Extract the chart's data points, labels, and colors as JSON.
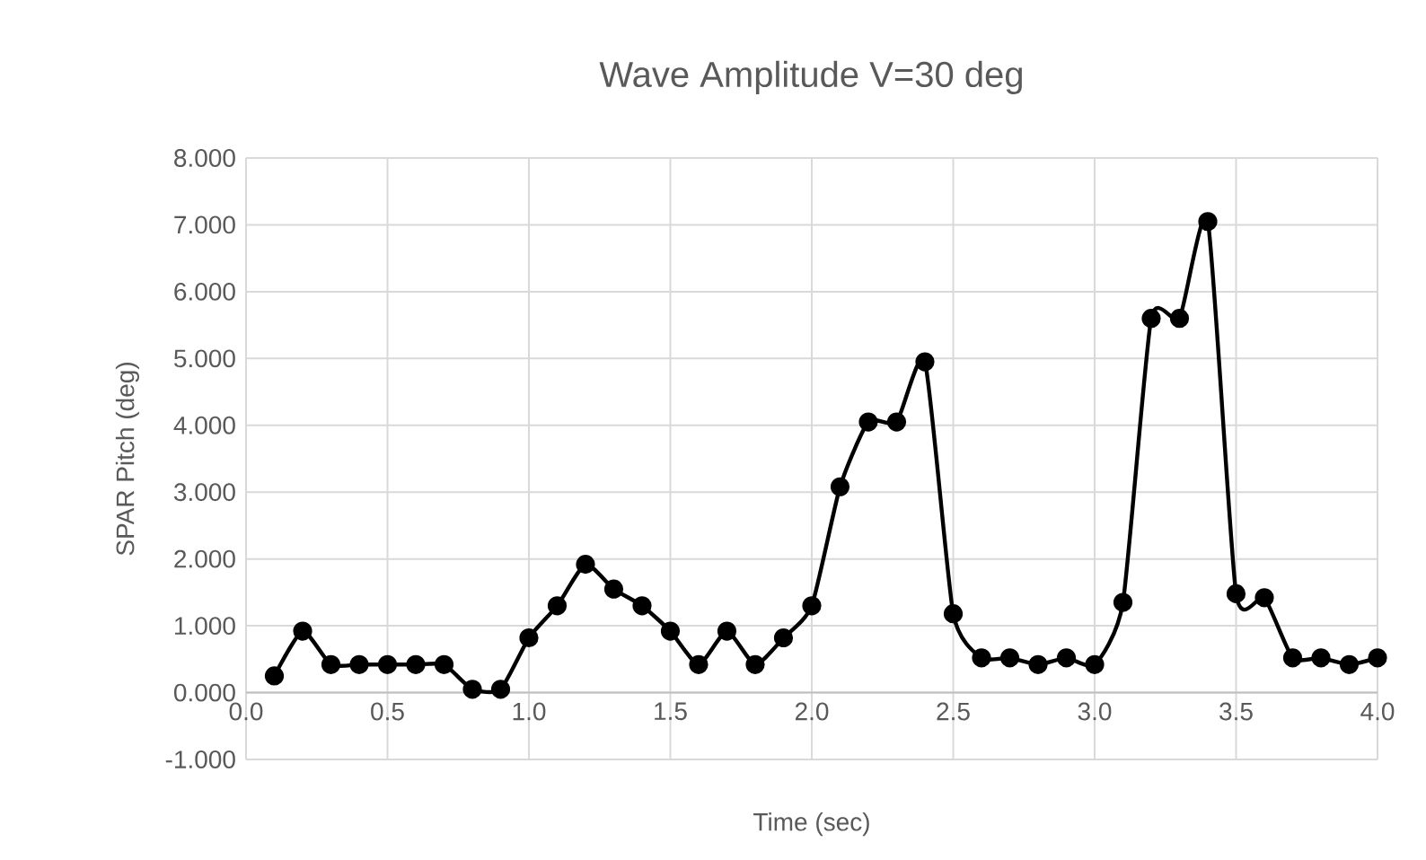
{
  "chart_data": {
    "type": "line",
    "title": "Wave Amplitude V=30 deg",
    "xlabel": "Time (sec)",
    "ylabel": "SPAR Pitch (deg)",
    "x": [
      0.1,
      0.2,
      0.3,
      0.4,
      0.5,
      0.6,
      0.7,
      0.8,
      0.9,
      1.0,
      1.1,
      1.2,
      1.3,
      1.4,
      1.5,
      1.6,
      1.7,
      1.8,
      1.9,
      2.0,
      2.1,
      2.2,
      2.3,
      2.4,
      2.5,
      2.6,
      2.7,
      2.8,
      2.9,
      3.0,
      3.1,
      3.2,
      3.3,
      3.4,
      3.5,
      3.6,
      3.7,
      3.8,
      3.9,
      4.0
    ],
    "series": [
      {
        "color": "#000000",
        "values": [
          0.25,
          0.92,
          0.42,
          0.42,
          0.42,
          0.42,
          0.42,
          0.05,
          0.05,
          0.82,
          1.3,
          1.92,
          1.55,
          1.3,
          0.92,
          0.42,
          0.92,
          0.42,
          0.82,
          1.3,
          3.08,
          4.05,
          4.05,
          4.95,
          1.18,
          0.52,
          0.52,
          0.42,
          0.52,
          0.42,
          1.35,
          5.6,
          5.6,
          7.05,
          1.48,
          1.42,
          0.52,
          0.52,
          0.42,
          0.52
        ]
      }
    ],
    "xlim": [
      0,
      4
    ],
    "ylim": [
      -1,
      8
    ],
    "xticks": [
      {
        "value": 0,
        "label": "0.0"
      },
      {
        "value": 0.5,
        "label": "0.5"
      },
      {
        "value": 1,
        "label": "1.0"
      },
      {
        "value": 1.5,
        "label": "1.5"
      },
      {
        "value": 2,
        "label": "2.0"
      },
      {
        "value": 2.5,
        "label": "2.5"
      },
      {
        "value": 3,
        "label": "3.0"
      },
      {
        "value": 3.5,
        "label": "3.5"
      },
      {
        "value": 4,
        "label": "4.0"
      }
    ],
    "yticks": [
      {
        "value": -1,
        "label": "-1.000"
      },
      {
        "value": 0,
        "label": "0.000"
      },
      {
        "value": 1,
        "label": "1.000"
      },
      {
        "value": 2,
        "label": "2.000"
      },
      {
        "value": 3,
        "label": "3.000"
      },
      {
        "value": 4,
        "label": "4.000"
      },
      {
        "value": 5,
        "label": "5.000"
      },
      {
        "value": 6,
        "label": "6.000"
      },
      {
        "value": 7,
        "label": "7.000"
      },
      {
        "value": 8,
        "label": "8.000"
      }
    ],
    "grid": true,
    "marker": "circle",
    "line_style": "solid",
    "legend": false
  }
}
